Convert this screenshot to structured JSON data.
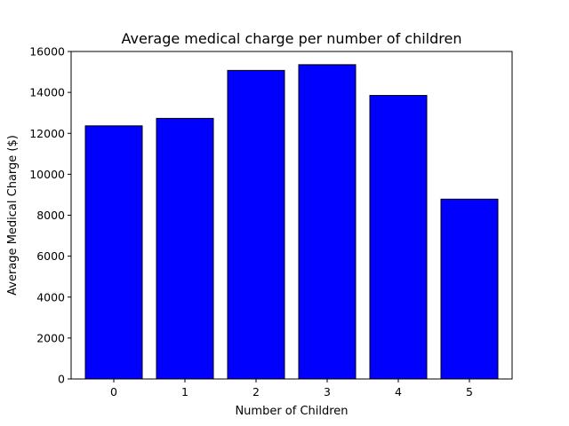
{
  "chart_data": {
    "type": "bar",
    "title": "Average medical charge per number of children",
    "xlabel": "Number of Children",
    "ylabel": "Average Medical Charge ($)",
    "categories": [
      "0",
      "1",
      "2",
      "3",
      "4",
      "5"
    ],
    "values": [
      12366,
      12731,
      15074,
      15355,
      13851,
      8786
    ],
    "ylim": [
      0,
      16000
    ],
    "yticks": [
      0,
      2000,
      4000,
      6000,
      8000,
      10000,
      12000,
      14000,
      16000
    ],
    "yticklabels": [
      "0",
      "2000",
      "4000",
      "6000",
      "8000",
      "10000",
      "12000",
      "14000",
      "16000"
    ],
    "grid": false,
    "legend": "none",
    "bar_color": "#0000ff",
    "edge_color": "#000000"
  }
}
